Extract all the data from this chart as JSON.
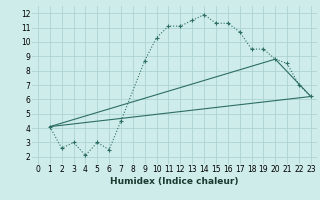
{
  "xlabel": "Humidex (Indice chaleur)",
  "bg_color": "#ceecea",
  "grid_color": "#aed4d0",
  "line_color": "#2d6e63",
  "xlim": [
    -0.5,
    23.5
  ],
  "ylim": [
    1.5,
    12.5
  ],
  "xticks": [
    0,
    1,
    2,
    3,
    4,
    5,
    6,
    7,
    8,
    9,
    10,
    11,
    12,
    13,
    14,
    15,
    16,
    17,
    18,
    19,
    20,
    21,
    22,
    23
  ],
  "yticks": [
    2,
    3,
    4,
    5,
    6,
    7,
    8,
    9,
    10,
    11,
    12
  ],
  "line1_x": [
    1,
    2,
    3,
    4,
    5,
    6,
    7,
    9,
    10,
    11,
    12,
    13,
    14,
    15,
    16,
    17,
    18,
    19,
    20,
    21,
    22,
    23
  ],
  "line1_y": [
    4.1,
    2.6,
    3.0,
    2.1,
    3.0,
    2.5,
    4.5,
    8.7,
    10.3,
    11.1,
    11.1,
    11.5,
    11.9,
    11.3,
    11.3,
    10.7,
    9.5,
    9.5,
    8.8,
    8.5,
    7.0,
    6.2
  ],
  "line2_x": [
    1,
    23
  ],
  "line2_y": [
    4.1,
    6.2
  ],
  "line3_x": [
    1,
    20,
    23
  ],
  "line3_y": [
    4.1,
    8.8,
    6.2
  ],
  "tick_fontsize": 5.5,
  "xlabel_fontsize": 6.5,
  "xlabel_fontweight": "bold"
}
